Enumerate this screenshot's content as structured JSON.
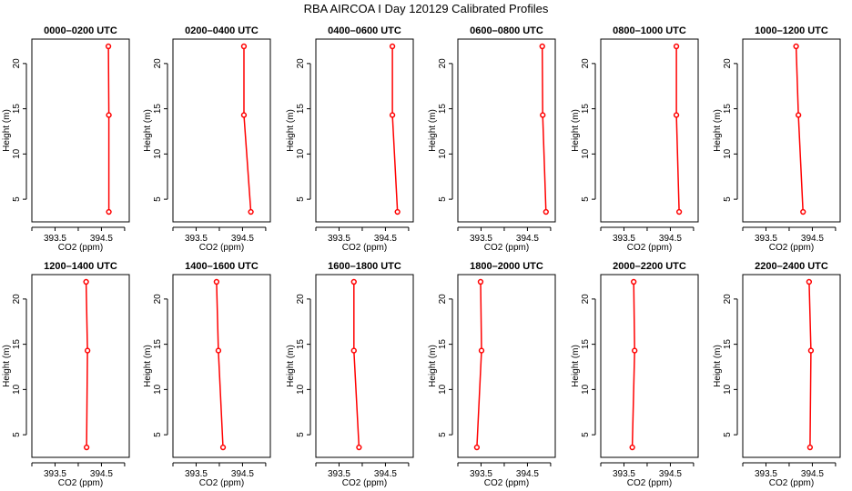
{
  "title": "RBA AIRCOA I  Day 120129  Calibrated Profiles",
  "chart_data": {
    "type": "line",
    "xlabel": "CO2 (ppm)",
    "ylabel": "Height (m)",
    "xlim": [
      393.0,
      395.1
    ],
    "ylim": [
      2.5,
      22.7
    ],
    "xticks": [
      393.0,
      393.5,
      394.0,
      394.5,
      395.0
    ],
    "xtick_labels": [
      "",
      "393.5",
      "",
      "394.5",
      ""
    ],
    "yticks": [
      5,
      10,
      15,
      20
    ],
    "yticks_labels": [
      "5",
      "10",
      "15",
      "20"
    ],
    "heights": [
      3.6,
      14.3,
      21.9
    ],
    "line_color": "#ff0000",
    "marker_color": "#ff0000",
    "panels": [
      {
        "title": "0000–0200 UTC",
        "values": [
          394.66,
          394.66,
          394.65
        ]
      },
      {
        "title": "0200–0400 UTC",
        "values": [
          394.68,
          394.53,
          394.53
        ]
      },
      {
        "title": "0400–0600 UTC",
        "values": [
          394.76,
          394.65,
          394.65
        ]
      },
      {
        "title": "0600–0800 UTC",
        "values": [
          394.9,
          394.83,
          394.82
        ]
      },
      {
        "title": "0800–1000 UTC",
        "values": [
          394.69,
          394.63,
          394.63
        ]
      },
      {
        "title": "1000–1200 UTC",
        "values": [
          394.3,
          394.2,
          394.15
        ]
      },
      {
        "title": "1200–1400 UTC",
        "values": [
          394.18,
          394.2,
          394.17
        ]
      },
      {
        "title": "1400–1600 UTC",
        "values": [
          394.08,
          393.98,
          393.94
        ]
      },
      {
        "title": "1600–1800 UTC",
        "values": [
          393.93,
          393.82,
          393.82
        ]
      },
      {
        "title": "1800–2000 UTC",
        "values": [
          393.41,
          393.51,
          393.49
        ]
      },
      {
        "title": "2000–2200 UTC",
        "values": [
          393.68,
          393.73,
          393.71
        ]
      },
      {
        "title": "2200–2400 UTC",
        "values": [
          394.45,
          394.47,
          394.43
        ]
      }
    ]
  }
}
